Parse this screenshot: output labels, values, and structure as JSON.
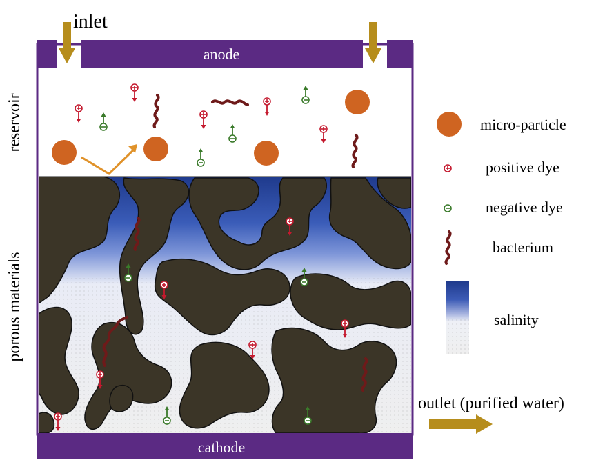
{
  "labels": {
    "inlet": "inlet",
    "anode": "anode",
    "cathode": "cathode",
    "reservoir": "reservoir",
    "porous_materials": "porous materials",
    "outlet": "outlet (purified water)"
  },
  "legend": {
    "micro_particle": "micro-particle",
    "positive_dye": "positive dye",
    "negative_dye": "negative dye",
    "bacterium": "bacterium",
    "salinity": "salinity"
  },
  "colors": {
    "electrode": "#5b2a83",
    "flow_arrow": "#b68d1c",
    "particle": "#cf6421",
    "positive_dye": "#c4192e",
    "negative_dye": "#3a7a2a",
    "bacterium": "#6e1a1a",
    "porous_solid": "#3b3527",
    "salinity_high": "#2a3f8f",
    "salinity_low": "#f2f2f2"
  },
  "icons": {
    "flow": "down-arrow",
    "outlet": "right-arrow",
    "positive_dye": "circle-plus-arrow-down",
    "negative_dye": "circle-minus-arrow-up",
    "bacterium": "squiggle"
  }
}
